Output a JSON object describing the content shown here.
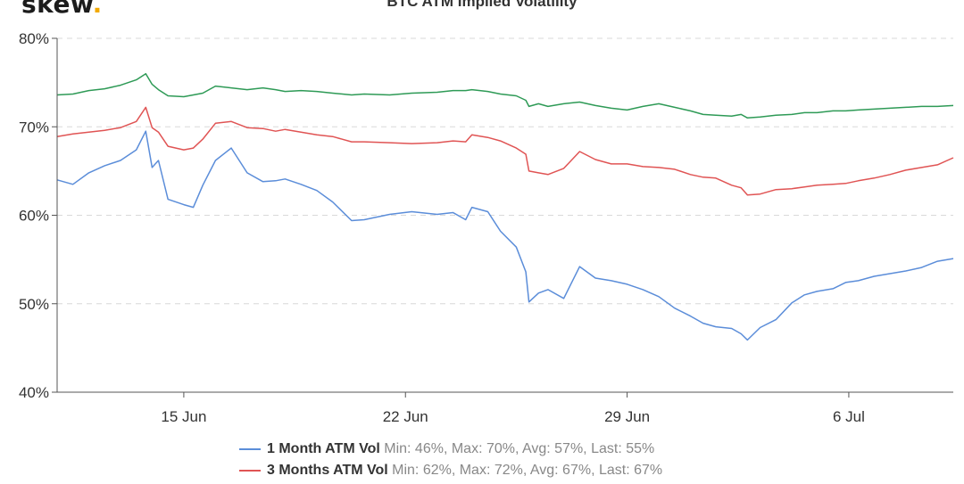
{
  "header": {
    "logo_text": "skew",
    "logo_dot": ".",
    "title": "BTC ATM Implied Volatility"
  },
  "chart_data": {
    "type": "line",
    "title": "BTC ATM Implied Volatility",
    "xlabel": "",
    "ylabel": "",
    "y_ticks": [
      "40%",
      "50%",
      "60%",
      "70%",
      "80%"
    ],
    "ylim": [
      40,
      80
    ],
    "x_unit": "days since 11 Jun",
    "xlim": [
      0,
      28.3
    ],
    "x_ticks": [
      {
        "label": "15 Jun",
        "x": 4
      },
      {
        "label": "22 Jun",
        "x": 11
      },
      {
        "label": "29 Jun",
        "x": 18
      },
      {
        "label": "6 Jul",
        "x": 25
      }
    ],
    "grid": "horizontal dashed",
    "legend_position": "bottom",
    "series": [
      {
        "name": "1 Month ATM Vol",
        "stats": "Min: 46%, Max: 70%, Avg: 57%, Last: 55%",
        "color": "#5b8dd9",
        "x": [
          0,
          0.5,
          1,
          1.5,
          2,
          2.5,
          2.8,
          3,
          3.2,
          3.5,
          4,
          4.3,
          4.6,
          5,
          5.5,
          6,
          6.5,
          6.9,
          7.2,
          7.7,
          8.2,
          8.7,
          9.3,
          9.7,
          10.5,
          11.2,
          12,
          12.5,
          12.9,
          13.1,
          13.6,
          14,
          14.5,
          14.8,
          14.9,
          15.2,
          15.5,
          16,
          16.5,
          17,
          17.5,
          18,
          18.5,
          19,
          19.5,
          20,
          20.4,
          20.8,
          21.3,
          21.6,
          21.8,
          22.2,
          22.7,
          23.2,
          23.6,
          24,
          24.5,
          24.9,
          25.3,
          25.8,
          26.3,
          26.8,
          27.3,
          27.8,
          28.3
        ],
        "y": [
          64,
          63.5,
          64.8,
          65.6,
          66.2,
          67.4,
          69.5,
          65.4,
          66.2,
          61.8,
          61.2,
          60.9,
          63.4,
          66.2,
          67.6,
          64.8,
          63.8,
          63.9,
          64.1,
          63.5,
          62.8,
          61.5,
          59.4,
          59.5,
          60.1,
          60.4,
          60.1,
          60.3,
          59.5,
          60.9,
          60.4,
          58.2,
          56.4,
          53.6,
          50.2,
          51.2,
          51.6,
          50.6,
          54.2,
          52.9,
          52.6,
          52.2,
          51.6,
          50.8,
          49.5,
          48.6,
          47.8,
          47.4,
          47.2,
          46.6,
          45.9,
          47.3,
          48.2,
          50.1,
          51.0,
          51.4,
          51.7,
          52.4,
          52.6,
          53.1,
          53.4,
          53.7,
          54.1,
          54.8,
          55.1
        ]
      },
      {
        "name": "3 Months ATM Vol",
        "stats": "Min: 62%, Max: 72%, Avg: 67%, Last: 67%",
        "color": "#e05454",
        "x": [
          0,
          0.5,
          1,
          1.5,
          2,
          2.5,
          2.8,
          3,
          3.2,
          3.5,
          4,
          4.3,
          4.6,
          5,
          5.5,
          6,
          6.5,
          6.9,
          7.2,
          7.7,
          8.2,
          8.7,
          9.3,
          9.7,
          10.5,
          11.2,
          12,
          12.5,
          12.9,
          13.1,
          13.6,
          14,
          14.5,
          14.8,
          14.9,
          15.2,
          15.5,
          16,
          16.5,
          17,
          17.5,
          18,
          18.5,
          19,
          19.5,
          20,
          20.4,
          20.8,
          21.3,
          21.6,
          21.8,
          22.2,
          22.7,
          23.2,
          23.6,
          24,
          24.5,
          24.9,
          25.3,
          25.8,
          26.3,
          26.8,
          27.3,
          27.8,
          28.3
        ],
        "y": [
          68.9,
          69.2,
          69.4,
          69.6,
          69.9,
          70.6,
          72.2,
          69.9,
          69.4,
          67.8,
          67.4,
          67.6,
          68.6,
          70.4,
          70.6,
          69.9,
          69.8,
          69.5,
          69.7,
          69.4,
          69.1,
          68.9,
          68.3,
          68.3,
          68.2,
          68.1,
          68.2,
          68.4,
          68.3,
          69.1,
          68.8,
          68.4,
          67.6,
          66.9,
          65.0,
          64.8,
          64.6,
          65.3,
          67.2,
          66.3,
          65.8,
          65.8,
          65.5,
          65.4,
          65.2,
          64.6,
          64.3,
          64.2,
          63.4,
          63.1,
          62.3,
          62.4,
          62.9,
          63.0,
          63.2,
          63.4,
          63.5,
          63.6,
          63.9,
          64.2,
          64.6,
          65.1,
          65.4,
          65.7,
          66.5
        ]
      },
      {
        "name": "",
        "stats": "",
        "color": "#2e9a56",
        "x": [
          0,
          0.5,
          1,
          1.5,
          2,
          2.5,
          2.8,
          3,
          3.2,
          3.5,
          4,
          4.3,
          4.6,
          5,
          5.5,
          6,
          6.5,
          6.9,
          7.2,
          7.7,
          8.2,
          8.7,
          9.3,
          9.7,
          10.5,
          11.2,
          12,
          12.5,
          12.9,
          13.1,
          13.6,
          14,
          14.5,
          14.8,
          14.9,
          15.2,
          15.5,
          16,
          16.5,
          17,
          17.5,
          18,
          18.5,
          19,
          19.5,
          20,
          20.4,
          20.8,
          21.3,
          21.6,
          21.8,
          22.2,
          22.7,
          23.2,
          23.6,
          24,
          24.5,
          24.9,
          25.3,
          25.8,
          26.3,
          26.8,
          27.3,
          27.8,
          28.3
        ],
        "y": [
          73.6,
          73.7,
          74.1,
          74.3,
          74.7,
          75.3,
          76.0,
          74.8,
          74.2,
          73.5,
          73.4,
          73.6,
          73.8,
          74.6,
          74.4,
          74.2,
          74.4,
          74.2,
          74.0,
          74.1,
          74.0,
          73.8,
          73.6,
          73.7,
          73.6,
          73.8,
          73.9,
          74.1,
          74.1,
          74.2,
          74.0,
          73.7,
          73.5,
          73.0,
          72.3,
          72.6,
          72.3,
          72.6,
          72.8,
          72.4,
          72.1,
          71.9,
          72.3,
          72.6,
          72.2,
          71.8,
          71.4,
          71.3,
          71.2,
          71.4,
          71.0,
          71.1,
          71.3,
          71.4,
          71.6,
          71.6,
          71.8,
          71.8,
          71.9,
          72.0,
          72.1,
          72.2,
          72.3,
          72.3,
          72.4
        ]
      }
    ]
  }
}
